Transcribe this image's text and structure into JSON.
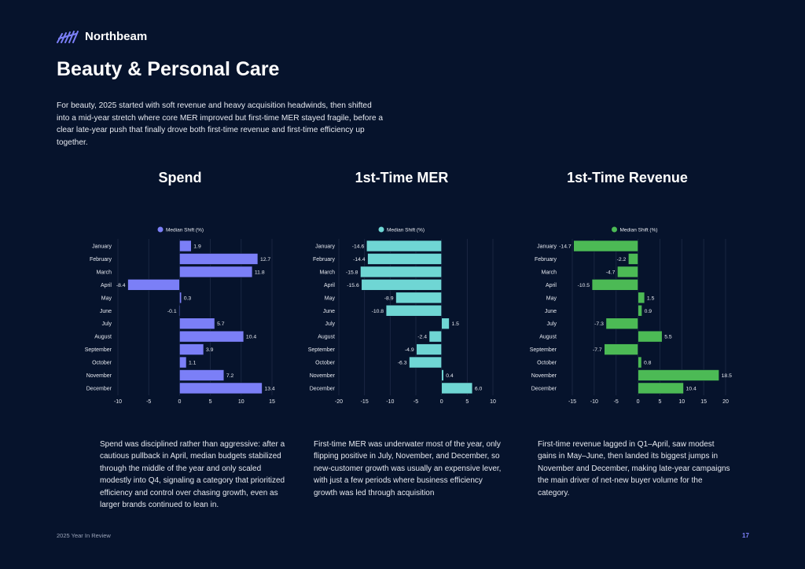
{
  "brand": {
    "name": "Northbeam"
  },
  "page": {
    "title": "Beauty & Personal Care",
    "intro": "For beauty, 2025 started with soft revenue and heavy acquisition headwinds, then shifted into a mid-year stretch where core MER improved but first-time MER stayed fragile, before a clear late-year push that finally drove both first-time revenue and first-time efficiency up together.",
    "footer_left": "2025 Year In Review",
    "page_number": "17"
  },
  "chart_data": [
    {
      "type": "bar",
      "orientation": "horizontal",
      "title": "Spend",
      "legend": "Median Shift (%)",
      "legend_position": "top",
      "grid": true,
      "color": "#7b7ff7",
      "categories": [
        "January",
        "February",
        "March",
        "April",
        "May",
        "June",
        "July",
        "August",
        "September",
        "October",
        "November",
        "December"
      ],
      "values": [
        1.9,
        12.7,
        11.8,
        -8.4,
        0.3,
        -0.1,
        5.7,
        10.4,
        3.9,
        1.1,
        7.2,
        13.4
      ],
      "labels": [
        "1.9",
        "12.7",
        "11.8",
        "-8.4",
        "0.3",
        "-0.1",
        "5.7",
        "10.4",
        "3.9",
        "1.1",
        "7.2",
        "13.4"
      ],
      "xlim": [
        -10,
        15
      ],
      "xticks": [
        -10,
        -5,
        0,
        5,
        10,
        15
      ],
      "description": "Spend was disciplined rather than aggressive: after a cautious pullback in April, median budgets stabilized through the middle of the year and only scaled modestly into Q4, signaling a category that prioritized efficiency and control over chasing growth, even as larger brands continued to lean in."
    },
    {
      "type": "bar",
      "orientation": "horizontal",
      "title": "1st-Time MER",
      "legend": "Median Shift (%)",
      "legend_position": "top",
      "grid": true,
      "color": "#6fd6d4",
      "categories": [
        "January",
        "February",
        "March",
        "April",
        "May",
        "June",
        "July",
        "August",
        "September",
        "October",
        "November",
        "December"
      ],
      "values": [
        -14.6,
        -14.4,
        -15.8,
        -15.6,
        -8.9,
        -10.8,
        1.5,
        -2.4,
        -4.9,
        -6.3,
        0.4,
        6.0
      ],
      "labels": [
        "-14.6",
        "-14.4",
        "-15.8",
        "-15.6",
        "-8.9",
        "-10.8",
        "1.5",
        "-2.4",
        "-4.9",
        "-6.3",
        "0.4",
        "6.0"
      ],
      "xlim": [
        -20,
        10
      ],
      "xticks": [
        -20,
        -15,
        -10,
        -5,
        0,
        5,
        10
      ],
      "description": "First-time MER was underwater most of the year, only flipping positive in July, November, and December, so new-customer growth was usually an expensive lever, with just a few periods where business efficiency growth was led through acquisition"
    },
    {
      "type": "bar",
      "orientation": "horizontal",
      "title": "1st-Time Revenue",
      "legend": "Median Shift (%)",
      "legend_position": "top",
      "grid": true,
      "color": "#4cba55",
      "categories": [
        "January",
        "February",
        "March",
        "April",
        "May",
        "June",
        "July",
        "August",
        "September",
        "October",
        "November",
        "December"
      ],
      "values": [
        -14.7,
        -2.2,
        -4.7,
        -10.5,
        1.5,
        0.9,
        -7.3,
        5.5,
        -7.7,
        0.8,
        18.5,
        10.4
      ],
      "labels": [
        "-14.7",
        "-2.2",
        "-4.7",
        "-10.5",
        "1.5",
        "0.9",
        "-7.3",
        "5.5",
        "-7.7",
        "0.8",
        "18.5",
        "10.4"
      ],
      "xlim": [
        -15,
        20
      ],
      "xticks": [
        -15,
        -10,
        -5,
        0,
        5,
        10,
        15,
        20
      ],
      "description": "First-time revenue lagged in Q1–April, saw modest gains in May–June, then landed its biggest jumps in November and December, making late-year campaigns the main driver of net-new buyer volume for the category."
    }
  ]
}
